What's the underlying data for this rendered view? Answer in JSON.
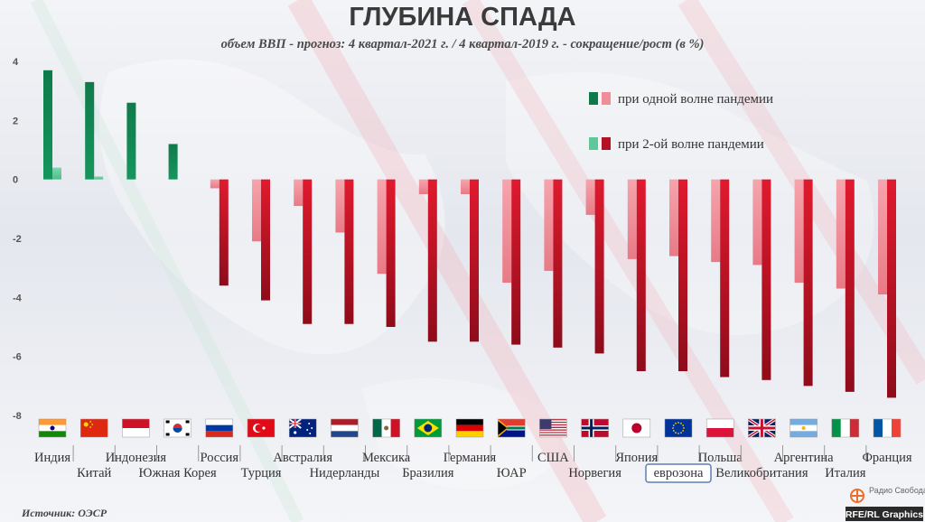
{
  "chart_data": {
    "type": "bar",
    "title": "ГЛУБИНА СПАДА",
    "subtitle": "объем ВВП - прогноз:  4 квартал-2021 г. / 4 квартал-2019 г. - сокращение/рост (в %)",
    "xlabel": "",
    "ylabel": "",
    "ylim": [
      -8,
      4
    ],
    "yticks": [
      "4",
      "2",
      "0",
      "-2",
      "-4",
      "-6",
      "-8"
    ],
    "legend_position": "top-right",
    "categories": [
      "Индия",
      "Китай",
      "Индонезия",
      "Южная Корея",
      "Россия",
      "Турция",
      "Австралия",
      "Нидерланды",
      "Мексика",
      "Бразилия",
      "Германия",
      "ЮАР",
      "США",
      "Норвегия",
      "Япония",
      "еврозона",
      "Польша",
      "Великобритания",
      "Аргентина",
      "Италия",
      "Франция"
    ],
    "label_rows": [
      "top",
      "bottom",
      "top",
      "bottom",
      "top",
      "bottom",
      "top",
      "bottom",
      "top",
      "bottom",
      "top",
      "bottom",
      "top",
      "bottom",
      "top",
      "bottom",
      "top",
      "bottom",
      "top",
      "bottom",
      "top"
    ],
    "highlighted_category": "еврозона",
    "series": [
      {
        "name": "при одной волне пандемии",
        "values": [
          0.4,
          0.1,
          0,
          0,
          -0.3,
          -2.1,
          -0.9,
          -1.8,
          -3.2,
          -0.5,
          -0.5,
          -3.5,
          -3.1,
          -1.2,
          -2.7,
          -2.6,
          -2.8,
          -2.9,
          -3.5,
          -3.7,
          -3.9
        ]
      },
      {
        "name": "при 2-ой волне пандемии",
        "values": [
          3.7,
          3.3,
          2.6,
          1.2,
          -3.6,
          -4.1,
          -4.9,
          -4.9,
          -5.0,
          -5.5,
          -5.5,
          -5.6,
          -5.7,
          -5.9,
          -6.5,
          -6.5,
          -6.7,
          -6.8,
          -7.0,
          -7.2,
          -7.4
        ]
      }
    ],
    "colors": {
      "one_wave_pos": "#5fc79a",
      "one_wave_neg": "#f08d98",
      "two_wave_pos": "#0e7a4a",
      "two_wave_neg": "#b41224",
      "text": "#444444",
      "title": "#3a3a3a"
    }
  },
  "source": "Источник: ОЭСР",
  "logo": {
    "name": "Радио Свобода",
    "credit": "RFE/RL Graphics"
  },
  "flags": [
    "in",
    "cn",
    "id",
    "kr",
    "ru",
    "tr",
    "au",
    "nl",
    "mx",
    "br",
    "de",
    "za",
    "us",
    "no",
    "jp",
    "eu",
    "pl",
    "gb",
    "ar",
    "it",
    "fr"
  ]
}
